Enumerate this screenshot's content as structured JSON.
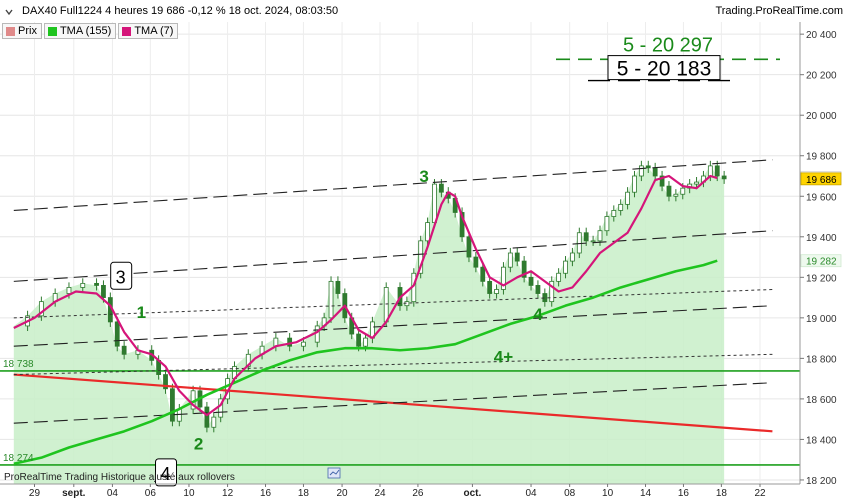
{
  "header": {
    "title": "DAX40 Full1224 4 heures 19 686 -0,12 % 18 oct. 2024, 08:03:50",
    "source": "Trading.ProRealTime.com"
  },
  "legend": [
    {
      "label": "Prix",
      "color": "#d97a7a"
    },
    {
      "label": "TMA (155)",
      "color": "#1fc41f"
    },
    {
      "label": "TMA (7)",
      "color": "#d5157a"
    }
  ],
  "footer": {
    "text": "ProRealTime Trading Historique ajusté aux rollovers"
  },
  "colors": {
    "price_fill": "#c8eec8",
    "tma_long": "#1fc41f",
    "tma_short": "#d5157a",
    "support_line": "#ea2a2a",
    "level_line": "#1fa11f",
    "annotation_green": "#1a8a1a"
  },
  "chart_data": {
    "type": "line",
    "title": "DAX40 Full1224 4 heures",
    "ylim": [
      18180,
      20460
    ],
    "y_ticks": [
      18200,
      18400,
      18600,
      18800,
      19000,
      19200,
      19400,
      19600,
      19800,
      20000,
      20200,
      20400
    ],
    "y_tick_labels": [
      "18 200",
      "18 400",
      "18 600",
      "18 800",
      "19 000",
      "19 200",
      "19 400",
      "19 600",
      "19 800",
      "20 000",
      "20 200",
      "20 400"
    ],
    "x_ticks": [
      "29",
      "sept.",
      "04",
      "06",
      "10",
      "12",
      "16",
      "18",
      "20",
      "24",
      "26",
      "oct.",
      "04",
      "08",
      "10",
      "14",
      "16",
      "18",
      "22"
    ],
    "x_index_range": [
      0,
      100
    ],
    "x_tick_index": [
      3,
      8.7,
      14.3,
      19.8,
      25.4,
      31,
      36.5,
      42,
      47.6,
      53.1,
      58.6,
      66.5,
      75,
      80.6,
      86.1,
      91.6,
      97.1,
      102.6,
      108.2
    ],
    "grid": true,
    "series": [
      {
        "name": "Prix",
        "x": [
          0,
          2,
          4,
          6,
          8,
          10,
          12,
          13,
          14,
          15,
          16,
          18,
          20,
          21,
          22,
          23,
          24,
          26,
          27,
          28,
          29,
          30,
          31,
          32,
          34,
          36,
          38,
          40,
          42,
          44,
          45,
          46,
          47,
          48,
          49,
          50,
          51,
          52,
          54,
          56,
          57,
          58,
          59,
          60,
          61,
          62,
          63,
          64,
          65,
          66,
          67,
          68,
          69,
          70,
          71,
          72,
          73,
          74,
          75,
          76,
          77,
          78,
          79,
          80,
          81,
          82,
          83,
          84,
          85,
          86,
          87,
          88,
          89,
          90,
          91,
          92,
          93,
          94,
          95,
          96,
          97,
          98,
          99,
          100,
          101,
          102,
          103
        ],
        "values": [
          18960,
          19010,
          19080,
          19120,
          19150,
          19170,
          19160,
          19100,
          18980,
          18860,
          18820,
          18840,
          18790,
          18720,
          18650,
          18490,
          18550,
          18640,
          18560,
          18460,
          18510,
          18600,
          18700,
          18760,
          18820,
          18860,
          18900,
          18860,
          18880,
          18960,
          19000,
          19180,
          19120,
          19000,
          18920,
          18860,
          18900,
          18980,
          19150,
          19060,
          19080,
          19220,
          19380,
          19470,
          19660,
          19620,
          19590,
          19520,
          19400,
          19300,
          19250,
          19180,
          19120,
          19140,
          19250,
          19320,
          19280,
          19200,
          19160,
          19120,
          19080,
          19180,
          19220,
          19280,
          19320,
          19420,
          19380,
          19380,
          19430,
          19500,
          19530,
          19560,
          19620,
          19700,
          19750,
          19740,
          19700,
          19650,
          19600,
          19610,
          19640,
          19660,
          19670,
          19700,
          19750,
          19700,
          19686
        ]
      },
      {
        "name": "TMA (7)",
        "x": [
          0,
          3,
          6,
          9,
          12,
          14,
          16,
          18,
          20,
          22,
          24,
          26,
          28,
          30,
          32,
          35,
          38,
          41,
          44,
          46,
          48,
          50,
          52,
          54,
          56,
          58,
          60,
          62,
          63,
          64,
          65,
          67,
          69,
          71,
          73,
          75,
          77,
          79,
          81,
          83,
          85,
          87,
          89,
          91,
          93,
          95,
          97,
          99,
          101,
          102
        ],
        "values": [
          18950,
          19000,
          19080,
          19130,
          19120,
          19060,
          18930,
          18840,
          18820,
          18760,
          18640,
          18570,
          18520,
          18570,
          18700,
          18800,
          18860,
          18880,
          18930,
          18990,
          19060,
          18940,
          18900,
          18980,
          19100,
          19160,
          19350,
          19560,
          19620,
          19600,
          19500,
          19340,
          19200,
          19160,
          19200,
          19230,
          19180,
          19130,
          19150,
          19230,
          19320,
          19370,
          19420,
          19540,
          19680,
          19700,
          19650,
          19640,
          19700,
          19690
        ]
      },
      {
        "name": "TMA (155)",
        "x": [
          0,
          4,
          8,
          12,
          16,
          20,
          24,
          28,
          32,
          36,
          40,
          44,
          48,
          52,
          56,
          60,
          64,
          68,
          72,
          76,
          80,
          84,
          88,
          92,
          96,
          100,
          102
        ],
        "values": [
          18280,
          18310,
          18360,
          18400,
          18440,
          18490,
          18550,
          18620,
          18680,
          18740,
          18790,
          18830,
          18850,
          18850,
          18840,
          18850,
          18870,
          18920,
          18970,
          19010,
          19060,
          19100,
          19150,
          19190,
          19230,
          19260,
          19282
        ]
      }
    ],
    "markers": {
      "last_price": 19686,
      "tma7_last": 19692,
      "tma155_last": 19282
    },
    "horizontal_lines": [
      {
        "value": 18738,
        "label": "18 738"
      },
      {
        "value": 18274,
        "label": "18 274"
      }
    ],
    "trend_lines": [
      {
        "style": "solid-red",
        "x": [
          0,
          110
        ],
        "y": [
          18720,
          18440
        ]
      },
      {
        "style": "long-dash",
        "x": [
          0,
          110
        ],
        "y": [
          19530,
          19780
        ]
      },
      {
        "style": "long-dash",
        "x": [
          0,
          110
        ],
        "y": [
          19180,
          19430
        ]
      },
      {
        "style": "long-dash",
        "x": [
          0,
          110
        ],
        "y": [
          18860,
          19060
        ]
      },
      {
        "style": "long-dash",
        "x": [
          0,
          110
        ],
        "y": [
          18480,
          18680
        ]
      },
      {
        "style": "short-dash",
        "x": [
          0,
          110
        ],
        "y": [
          19000,
          19140
        ]
      },
      {
        "style": "short-dash",
        "x": [
          0,
          110
        ],
        "y": [
          18720,
          18820
        ]
      }
    ],
    "annotations": [
      {
        "text": "3",
        "boxed": true,
        "x": 15.5,
        "y": 19210,
        "color": "#000000"
      },
      {
        "text": "1",
        "boxed": false,
        "x": 18.5,
        "y": 19030,
        "color": "#1a8a1a"
      },
      {
        "text": "2",
        "boxed": false,
        "x": 26.8,
        "y": 18380,
        "color": "#1a8a1a"
      },
      {
        "text": "4",
        "boxed": true,
        "x": 22,
        "y": 18240,
        "color": "#000000"
      },
      {
        "text": "3",
        "boxed": false,
        "x": 59.5,
        "y": 19700,
        "color": "#1a8a1a"
      },
      {
        "text": "4",
        "boxed": false,
        "x": 76,
        "y": 19020,
        "color": "#1a8a1a"
      },
      {
        "text": "4+",
        "boxed": false,
        "x": 71,
        "y": 18810,
        "color": "#1a8a1a"
      },
      {
        "text": "5 - 20 297",
        "boxed": false,
        "x": 90,
        "y": 20350,
        "color": "#1a8a1a"
      },
      {
        "text": "5 -  20 183",
        "boxed": true,
        "x": 90,
        "y": 20230,
        "color": "#000000"
      }
    ]
  }
}
